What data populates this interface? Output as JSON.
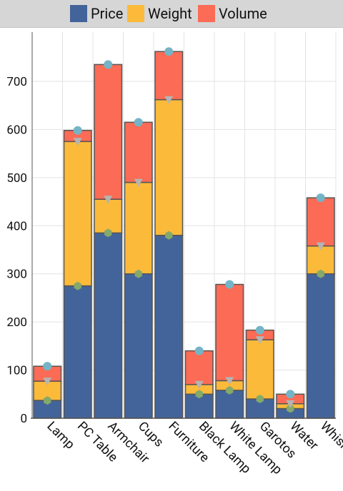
{
  "legend": {
    "items": [
      {
        "label": "Price",
        "color": "#43649a"
      },
      {
        "label": "Weight",
        "color": "#fbba3a"
      },
      {
        "label": "Volume",
        "color": "#fc6b55"
      }
    ]
  },
  "chart_data": {
    "type": "bar",
    "stacked": true,
    "categories": [
      "Lamp",
      "PC Table",
      "Armchair",
      "Cups",
      "Furniture",
      "Black Lamp",
      "White Lamp",
      "Garotos",
      "Water",
      "Whiskey"
    ],
    "series": [
      {
        "name": "Price",
        "color": "#43649a",
        "marker": "hexagon",
        "marker_color": "#84a96a",
        "values": [
          37,
          275,
          385,
          300,
          380,
          50,
          58,
          40,
          20,
          300
        ]
      },
      {
        "name": "Weight",
        "color": "#fbba3a",
        "marker": "triangle-down",
        "marker_color": "#b4b4b4",
        "values": [
          40,
          300,
          70,
          190,
          282,
          20,
          20,
          123,
          10,
          58
        ]
      },
      {
        "name": "Volume",
        "color": "#fc6b55",
        "marker": "circle",
        "marker_color": "#74b4c6",
        "values": [
          31,
          23,
          280,
          125,
          100,
          70,
          200,
          20,
          20,
          100
        ]
      }
    ],
    "ylim": [
      0,
      790
    ],
    "yticks": [
      0,
      100,
      200,
      300,
      400,
      500,
      600,
      700
    ],
    "grid": true,
    "legend_position": "top",
    "xlabel": "",
    "ylabel": "",
    "x_tick_rotation": 45
  }
}
